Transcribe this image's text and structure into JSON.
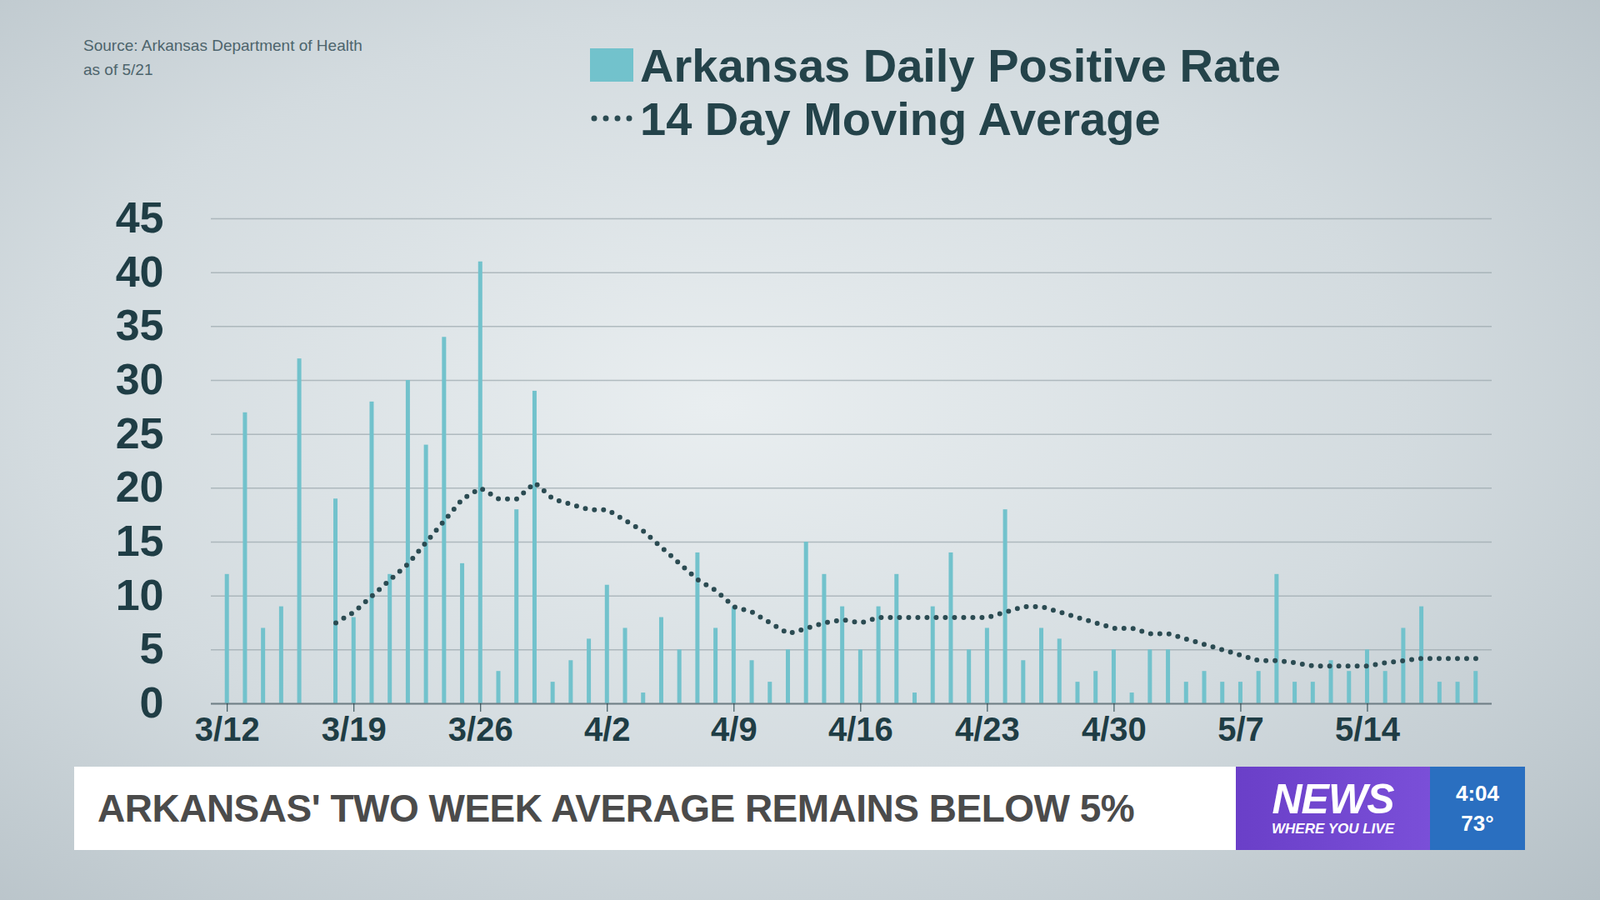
{
  "chart_data": {
    "type": "bar",
    "annotations": [
      "Source: Arkansas Department of Health",
      "as of 5/21"
    ],
    "categories": [
      "3/12",
      null,
      null,
      null,
      null,
      null,
      null,
      "3/19",
      null,
      null,
      null,
      null,
      null,
      null,
      "3/26",
      null,
      null,
      null,
      null,
      null,
      null,
      "4/2",
      null,
      null,
      null,
      null,
      null,
      null,
      "4/9",
      null,
      null,
      null,
      null,
      null,
      null,
      "4/16",
      null,
      null,
      null,
      null,
      null,
      null,
      "4/23",
      null,
      null,
      null,
      null,
      null,
      null,
      "4/30",
      null,
      null,
      null,
      null,
      null,
      null,
      "5/7",
      null,
      null,
      null,
      null,
      null,
      null,
      "5/14",
      null,
      null,
      null,
      null,
      null,
      null
    ],
    "series": [
      {
        "name": "Arkansas Daily Positive Rate",
        "type": "bar",
        "color": "#72c2cc",
        "values": [
          12,
          27,
          7,
          9,
          32,
          null,
          19,
          8,
          28,
          12,
          30,
          24,
          34,
          13,
          41,
          3,
          18,
          29,
          2,
          4,
          6,
          11,
          7,
          1,
          8,
          5,
          14,
          7,
          9,
          4,
          2,
          5,
          15,
          12,
          9,
          5,
          9,
          12,
          1,
          9,
          14,
          5,
          7,
          18,
          4,
          7,
          6,
          2,
          3,
          5,
          1,
          5,
          5,
          2,
          3,
          2,
          2,
          3,
          12,
          2,
          2,
          4,
          3,
          5,
          3,
          7,
          9,
          2,
          2,
          3
        ]
      },
      {
        "name": "14 Day Moving Average",
        "type": "line",
        "line_style": "dotted",
        "color": "#2b4b52",
        "values": [
          null,
          null,
          null,
          null,
          null,
          null,
          7.5,
          8.5,
          10,
          11.5,
          13,
          15,
          17,
          19,
          20,
          19,
          19,
          20.5,
          19,
          18.5,
          18,
          18,
          17,
          16,
          14.5,
          13,
          11.5,
          10.5,
          9,
          8.5,
          7.5,
          6.5,
          7,
          7.5,
          7.8,
          7.5,
          8,
          8,
          8,
          8,
          8,
          8,
          8,
          8.5,
          9,
          9,
          8.5,
          8,
          7.5,
          7,
          7,
          6.5,
          6.5,
          6,
          5.5,
          5,
          4.5,
          4,
          4,
          3.8,
          3.5,
          3.5,
          3.5,
          3.5,
          3.8,
          4,
          4.2,
          4.2,
          4.2,
          4.2
        ]
      }
    ],
    "ylim": [
      0,
      45
    ],
    "yticks": [
      0,
      5,
      10,
      15,
      20,
      25,
      30,
      35,
      40,
      45
    ],
    "grid": true,
    "legend": "top"
  },
  "overlay": {
    "headline": "ARKANSAS' TWO WEEK AVERAGE REMAINS BELOW 5%",
    "brand": "NEWS",
    "tagline": "WHERE YOU LIVE",
    "time": "4:04",
    "temperature": "73°"
  }
}
